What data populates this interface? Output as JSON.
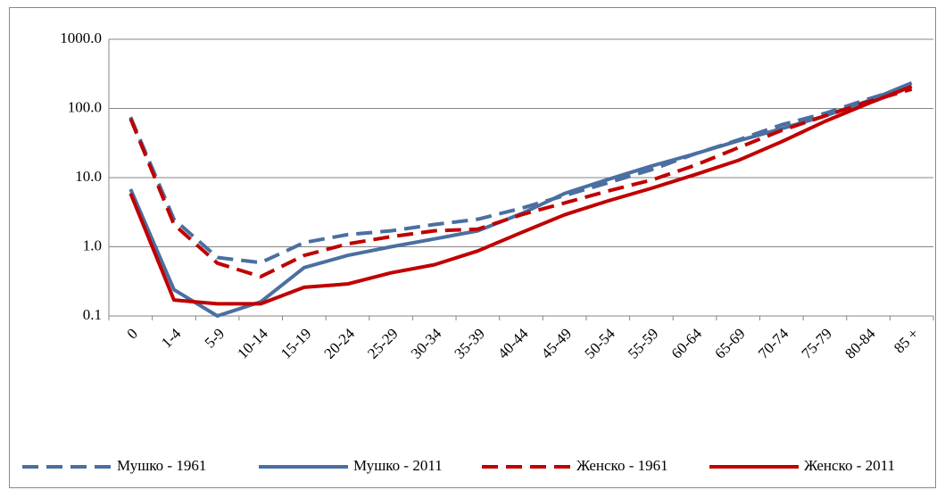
{
  "chart_data": {
    "type": "line",
    "categories": [
      "0",
      "1-4",
      "5-9",
      "10-14",
      "15-19",
      "20-24",
      "25-29",
      "30-34",
      "35-39",
      "40-44",
      "45-49",
      "50-54",
      "55-59",
      "60-64",
      "65-69",
      "70-74",
      "75-79",
      "80-84",
      "85 +"
    ],
    "series": [
      {
        "name": "Мушко - 1961",
        "color": "#4a6fa0",
        "dash": true,
        "values": [
          75,
          2.5,
          0.7,
          0.59,
          1.15,
          1.5,
          1.7,
          2.1,
          2.5,
          3.6,
          5.5,
          8.4,
          13,
          22,
          35,
          58,
          85,
          137,
          213
        ]
      },
      {
        "name": "Мушко - 2011",
        "color": "#4a6fa0",
        "dash": false,
        "values": [
          6.8,
          0.24,
          0.1,
          0.16,
          0.5,
          0.75,
          1.0,
          1.3,
          1.7,
          3.0,
          5.9,
          9.4,
          14.7,
          22,
          34,
          51,
          78,
          129,
          234
        ]
      },
      {
        "name": "Женско - 1961",
        "color": "#c00000",
        "dash": true,
        "values": [
          71,
          2.1,
          0.58,
          0.37,
          0.75,
          1.1,
          1.4,
          1.7,
          1.8,
          2.9,
          4.3,
          6.4,
          9.2,
          15,
          27,
          48,
          78,
          125,
          190
        ]
      },
      {
        "name": "Женско - 2011",
        "color": "#c00000",
        "dash": false,
        "values": [
          5.9,
          0.17,
          0.15,
          0.15,
          0.26,
          0.29,
          0.42,
          0.55,
          0.87,
          1.6,
          2.9,
          4.6,
          7.0,
          11,
          17.7,
          33,
          65,
          118,
          208
        ]
      }
    ],
    "ylim": [
      0.1,
      1000
    ],
    "log_y": true,
    "yticks": [
      {
        "value": 1000,
        "label": "1000.0"
      },
      {
        "value": 100,
        "label": "100.0"
      },
      {
        "value": 10,
        "label": "10.0"
      },
      {
        "value": 1,
        "label": "1.0"
      },
      0.1
    ],
    "grid": true,
    "legend": "bottom"
  }
}
